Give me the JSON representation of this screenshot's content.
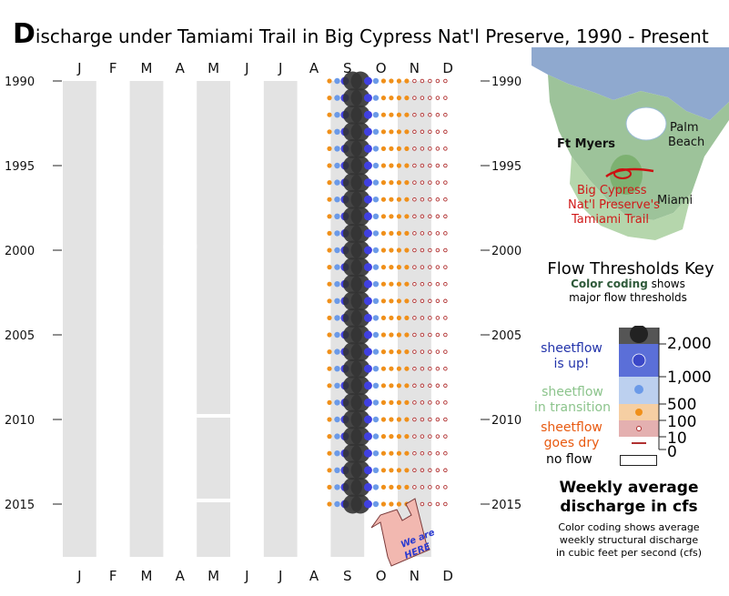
{
  "title": {
    "first_letter": "D",
    "rest": "ischarge under Tamiami Trail in Big Cypress Nat'l Preserve, 1990 - Present"
  },
  "chart_data": {
    "type": "scatter",
    "description_of_encoding": "bubble",
    "months": [
      "J",
      "F",
      "M",
      "A",
      "M",
      "J",
      "J",
      "A",
      "S",
      "O",
      "N",
      "D"
    ],
    "year_range": [
      1990,
      2015
    ],
    "year_ticks": [
      "1990",
      "1995",
      "2000",
      "2005",
      "2010",
      "2015"
    ],
    "weekly_flow_cfs": {
      "1990": [
        0,
        0,
        0,
        0,
        0,
        0,
        0,
        0,
        0,
        0,
        0,
        0,
        0,
        0,
        0,
        0,
        0,
        0,
        0,
        0,
        0,
        0,
        0,
        0,
        0,
        0,
        0,
        0,
        0,
        0,
        0,
        0,
        0,
        0,
        300,
        800,
        1500,
        2000,
        2000,
        1500,
        800,
        300,
        200,
        150,
        100,
        80,
        60,
        40,
        20,
        10,
        0,
        0
      ],
      "1991": [
        0,
        0,
        0,
        0,
        0,
        0,
        0,
        0,
        0,
        0,
        0,
        0,
        0,
        0,
        0,
        0,
        0,
        0,
        0,
        0,
        0,
        0,
        0,
        0,
        0,
        0,
        0,
        0,
        0,
        0,
        0,
        0,
        0,
        0,
        300,
        800,
        1500,
        2000,
        2000,
        1500,
        800,
        300,
        200,
        150,
        100,
        80,
        60,
        40,
        20,
        10,
        0,
        0
      ],
      "1992": [
        0,
        0,
        0,
        0,
        0,
        0,
        0,
        0,
        0,
        0,
        0,
        0,
        0,
        0,
        0,
        0,
        0,
        0,
        0,
        0,
        0,
        0,
        0,
        0,
        0,
        0,
        0,
        0,
        0,
        0,
        0,
        0,
        0,
        0,
        300,
        800,
        1500,
        2000,
        2000,
        1500,
        800,
        300,
        200,
        150,
        100,
        80,
        60,
        40,
        20,
        10,
        0,
        0
      ],
      "1993": [
        0,
        0,
        0,
        0,
        0,
        0,
        0,
        0,
        0,
        0,
        0,
        0,
        0,
        0,
        0,
        0,
        0,
        0,
        0,
        0,
        0,
        0,
        0,
        0,
        0,
        0,
        0,
        0,
        0,
        0,
        0,
        0,
        0,
        0,
        300,
        800,
        1500,
        2000,
        2000,
        1500,
        800,
        300,
        200,
        150,
        100,
        80,
        60,
        40,
        20,
        10,
        0,
        0
      ],
      "1994": [
        0,
        0,
        0,
        0,
        0,
        0,
        0,
        0,
        0,
        0,
        0,
        0,
        0,
        0,
        0,
        0,
        0,
        0,
        0,
        0,
        0,
        0,
        0,
        0,
        0,
        0,
        0,
        0,
        0,
        0,
        0,
        0,
        0,
        0,
        300,
        800,
        1500,
        2000,
        2000,
        1500,
        800,
        300,
        200,
        150,
        100,
        80,
        60,
        40,
        20,
        10,
        0,
        0
      ],
      "1995": [
        0,
        0,
        0,
        0,
        0,
        0,
        0,
        0,
        0,
        0,
        0,
        0,
        0,
        0,
        0,
        0,
        0,
        0,
        0,
        0,
        0,
        0,
        0,
        0,
        0,
        0,
        0,
        0,
        0,
        0,
        0,
        0,
        0,
        0,
        300,
        800,
        1500,
        2000,
        2000,
        1500,
        800,
        300,
        200,
        150,
        100,
        80,
        60,
        40,
        20,
        10,
        0,
        0
      ],
      "1996": [
        0,
        0,
        0,
        0,
        0,
        0,
        0,
        0,
        0,
        0,
        0,
        0,
        0,
        0,
        0,
        0,
        0,
        0,
        0,
        0,
        0,
        0,
        0,
        0,
        0,
        0,
        0,
        0,
        0,
        0,
        0,
        0,
        0,
        0,
        300,
        800,
        1500,
        2000,
        2000,
        1500,
        800,
        300,
        200,
        150,
        100,
        80,
        60,
        40,
        20,
        10,
        0,
        0
      ],
      "1997": [
        0,
        0,
        0,
        0,
        0,
        0,
        0,
        0,
        0,
        0,
        0,
        0,
        0,
        0,
        0,
        0,
        0,
        0,
        0,
        0,
        0,
        0,
        0,
        0,
        0,
        0,
        0,
        0,
        0,
        0,
        0,
        0,
        0,
        0,
        300,
        800,
        1500,
        2000,
        2000,
        1500,
        800,
        300,
        200,
        150,
        100,
        80,
        60,
        40,
        20,
        10,
        0,
        0
      ],
      "1998": [
        0,
        0,
        0,
        0,
        0,
        0,
        0,
        0,
        0,
        0,
        0,
        0,
        0,
        0,
        0,
        0,
        0,
        0,
        0,
        0,
        0,
        0,
        0,
        0,
        0,
        0,
        0,
        0,
        0,
        0,
        0,
        0,
        0,
        0,
        300,
        800,
        1500,
        2000,
        2000,
        1500,
        800,
        300,
        200,
        150,
        100,
        80,
        60,
        40,
        20,
        10,
        0,
        0
      ],
      "1999": [
        0,
        0,
        0,
        0,
        0,
        0,
        0,
        0,
        0,
        0,
        0,
        0,
        0,
        0,
        0,
        0,
        0,
        0,
        0,
        0,
        0,
        0,
        0,
        0,
        0,
        0,
        0,
        0,
        0,
        0,
        0,
        0,
        0,
        0,
        300,
        800,
        1500,
        2000,
        2000,
        1500,
        800,
        300,
        200,
        150,
        100,
        80,
        60,
        40,
        20,
        10,
        0,
        0
      ],
      "2000": [
        0,
        0,
        0,
        0,
        0,
        0,
        0,
        0,
        0,
        0,
        0,
        0,
        0,
        0,
        0,
        0,
        0,
        0,
        0,
        0,
        0,
        0,
        0,
        0,
        0,
        0,
        0,
        0,
        0,
        0,
        0,
        0,
        0,
        0,
        300,
        800,
        1500,
        2000,
        2000,
        1500,
        800,
        300,
        200,
        150,
        100,
        80,
        60,
        40,
        20,
        10,
        0,
        0
      ],
      "2001": [
        0,
        0,
        0,
        0,
        0,
        0,
        0,
        0,
        0,
        0,
        0,
        0,
        0,
        0,
        0,
        0,
        0,
        0,
        0,
        0,
        0,
        0,
        0,
        0,
        0,
        0,
        0,
        0,
        0,
        0,
        0,
        0,
        0,
        0,
        300,
        800,
        1500,
        2000,
        2000,
        1500,
        800,
        300,
        200,
        150,
        100,
        80,
        60,
        40,
        20,
        10,
        0,
        0
      ],
      "2002": [
        0,
        0,
        0,
        0,
        0,
        0,
        0,
        0,
        0,
        0,
        0,
        0,
        0,
        0,
        0,
        0,
        0,
        0,
        0,
        0,
        0,
        0,
        0,
        0,
        0,
        0,
        0,
        0,
        0,
        0,
        0,
        0,
        0,
        0,
        300,
        800,
        1500,
        2000,
        2000,
        1500,
        800,
        300,
        200,
        150,
        100,
        80,
        60,
        40,
        20,
        10,
        0,
        0
      ],
      "2003": [
        0,
        0,
        0,
        0,
        0,
        0,
        0,
        0,
        0,
        0,
        0,
        0,
        0,
        0,
        0,
        0,
        0,
        0,
        0,
        0,
        0,
        0,
        0,
        0,
        0,
        0,
        0,
        0,
        0,
        0,
        0,
        0,
        0,
        0,
        300,
        800,
        1500,
        2000,
        2000,
        1500,
        800,
        300,
        200,
        150,
        100,
        80,
        60,
        40,
        20,
        10,
        0,
        0
      ],
      "2004": [
        0,
        0,
        0,
        0,
        0,
        0,
        0,
        0,
        0,
        0,
        0,
        0,
        0,
        0,
        0,
        0,
        0,
        0,
        0,
        0,
        0,
        0,
        0,
        0,
        0,
        0,
        0,
        0,
        0,
        0,
        0,
        0,
        0,
        0,
        300,
        800,
        1500,
        2000,
        2000,
        1500,
        800,
        300,
        200,
        150,
        100,
        80,
        60,
        40,
        20,
        10,
        0,
        0
      ],
      "2005": [
        0,
        0,
        0,
        0,
        0,
        0,
        0,
        0,
        0,
        0,
        0,
        0,
        0,
        0,
        0,
        0,
        0,
        0,
        0,
        0,
        0,
        0,
        0,
        0,
        0,
        0,
        0,
        0,
        0,
        0,
        0,
        0,
        0,
        0,
        300,
        800,
        1500,
        2000,
        2000,
        1500,
        800,
        300,
        200,
        150,
        100,
        80,
        60,
        40,
        20,
        10,
        0,
        0
      ],
      "2006": [
        0,
        0,
        0,
        0,
        0,
        0,
        0,
        0,
        0,
        0,
        0,
        0,
        0,
        0,
        0,
        0,
        0,
        0,
        0,
        0,
        0,
        0,
        0,
        0,
        0,
        0,
        0,
        0,
        0,
        0,
        0,
        0,
        0,
        0,
        300,
        800,
        1500,
        2000,
        2000,
        1500,
        800,
        300,
        200,
        150,
        100,
        80,
        60,
        40,
        20,
        10,
        0,
        0
      ],
      "2007": [
        0,
        0,
        0,
        0,
        0,
        0,
        0,
        0,
        0,
        0,
        0,
        0,
        0,
        0,
        0,
        0,
        0,
        0,
        0,
        0,
        0,
        0,
        0,
        0,
        0,
        0,
        0,
        0,
        0,
        0,
        0,
        0,
        0,
        0,
        300,
        800,
        1500,
        2000,
        2000,
        1500,
        800,
        300,
        200,
        150,
        100,
        80,
        60,
        40,
        20,
        10,
        0,
        0
      ],
      "2008": [
        0,
        0,
        0,
        0,
        0,
        0,
        0,
        0,
        0,
        0,
        0,
        0,
        0,
        0,
        0,
        0,
        0,
        0,
        0,
        0,
        0,
        0,
        0,
        0,
        0,
        0,
        0,
        0,
        0,
        0,
        0,
        0,
        0,
        0,
        300,
        800,
        1500,
        2000,
        2000,
        1500,
        800,
        300,
        200,
        150,
        100,
        80,
        60,
        40,
        20,
        10,
        0,
        0
      ],
      "2009": [
        0,
        0,
        0,
        0,
        0,
        0,
        0,
        0,
        0,
        0,
        0,
        0,
        0,
        0,
        0,
        0,
        0,
        0,
        0,
        0,
        0,
        0,
        0,
        0,
        0,
        0,
        0,
        0,
        0,
        0,
        0,
        0,
        0,
        0,
        300,
        800,
        1500,
        2000,
        2000,
        1500,
        800,
        300,
        200,
        150,
        100,
        80,
        60,
        40,
        20,
        10,
        0,
        0
      ],
      "2010": [
        0,
        0,
        0,
        0,
        0,
        0,
        0,
        0,
        0,
        0,
        0,
        0,
        0,
        0,
        0,
        0,
        0,
        0,
        0,
        0,
        0,
        0,
        0,
        0,
        0,
        0,
        0,
        0,
        0,
        0,
        0,
        0,
        0,
        0,
        300,
        800,
        1500,
        2000,
        2000,
        1500,
        800,
        300,
        200,
        150,
        100,
        80,
        60,
        40,
        20,
        10,
        0,
        0
      ],
      "2011": [
        0,
        0,
        0,
        0,
        0,
        0,
        0,
        0,
        0,
        0,
        0,
        0,
        0,
        0,
        0,
        0,
        0,
        0,
        0,
        0,
        0,
        0,
        0,
        0,
        0,
        0,
        0,
        0,
        0,
        0,
        0,
        0,
        0,
        0,
        300,
        800,
        1500,
        2000,
        2000,
        1500,
        800,
        300,
        200,
        150,
        100,
        80,
        60,
        40,
        20,
        10,
        0,
        0
      ],
      "2012": [
        0,
        0,
        0,
        0,
        0,
        0,
        0,
        0,
        0,
        0,
        0,
        0,
        0,
        0,
        0,
        0,
        0,
        0,
        0,
        0,
        0,
        0,
        0,
        0,
        0,
        0,
        0,
        0,
        0,
        0,
        0,
        0,
        0,
        0,
        300,
        800,
        1500,
        2000,
        2000,
        1500,
        800,
        300,
        200,
        150,
        100,
        80,
        60,
        40,
        20,
        10,
        0,
        0
      ],
      "2013": [
        0,
        0,
        0,
        0,
        0,
        0,
        0,
        0,
        0,
        0,
        0,
        0,
        0,
        0,
        0,
        0,
        0,
        0,
        0,
        0,
        0,
        0,
        0,
        0,
        0,
        0,
        0,
        0,
        0,
        0,
        0,
        0,
        0,
        0,
        300,
        800,
        1500,
        2000,
        2000,
        1500,
        800,
        300,
        200,
        150,
        100,
        80,
        60,
        40,
        20,
        10,
        0,
        0
      ],
      "2014": [
        0,
        0,
        0,
        0,
        0,
        0,
        0,
        0,
        0,
        0,
        0,
        0,
        0,
        0,
        0,
        0,
        0,
        0,
        0,
        0,
        0,
        0,
        0,
        0,
        0,
        0,
        0,
        0,
        0,
        0,
        0,
        0,
        0,
        0,
        300,
        800,
        1500,
        2000,
        2000,
        1500,
        800,
        300,
        200,
        150,
        100,
        80,
        60,
        40,
        20,
        10,
        0,
        0
      ],
      "2015": [
        0,
        0,
        0,
        0,
        0,
        0,
        0,
        0,
        0,
        0,
        0,
        0,
        0,
        0,
        0,
        0,
        0,
        0,
        0,
        0,
        0,
        0,
        0,
        0,
        0,
        0,
        0,
        0,
        0,
        0,
        0,
        0,
        0,
        0,
        300,
        800,
        1500,
        2000,
        2000,
        1500,
        800,
        300,
        200,
        150,
        100,
        80,
        60,
        40,
        20,
        10,
        0,
        0
      ]
    },
    "thresholds_cfs": [
      2000,
      1000,
      500,
      100,
      10,
      0
    ],
    "threshold_labels": [
      "2,000",
      "1,000",
      "500",
      "100",
      "10",
      "0"
    ],
    "colors": {
      "sheetflow_up": "#4040e0",
      "transition": "#6b9ae8",
      "goes_dry": "#f0901a",
      "trace": "#b03030",
      "big": "#333333",
      "month_band": "#e3e3e3"
    }
  },
  "callout": {
    "line1": "We are",
    "line2": "HERE"
  },
  "map": {
    "city1": "Ft Myers",
    "city2_line1": "Palm",
    "city2_line2": "Beach",
    "city3": "Miami",
    "place_line1": "Big Cypress",
    "place_line2": "Nat'l Preserve's",
    "place_line3": "Tamiami Trail"
  },
  "key": {
    "title": "Flow Thresholds Key",
    "sub_bold": "Color coding",
    "sub_rest": " shows",
    "sub_line2": "major flow thresholds",
    "up_line1": "sheetflow",
    "up_line2": "is up!",
    "trans_line1": "sheetflow",
    "trans_line2": "in transition",
    "dry_line1": "sheetflow",
    "dry_line2": "goes dry",
    "noflow": "no flow"
  },
  "weekly": {
    "title_line1": "Weekly average",
    "title_line2": "discharge in cfs",
    "sub_line1": "Color coding shows average",
    "sub_line2": "weekly structural discharge",
    "sub_line3": "in cubic feet per second (cfs)"
  }
}
